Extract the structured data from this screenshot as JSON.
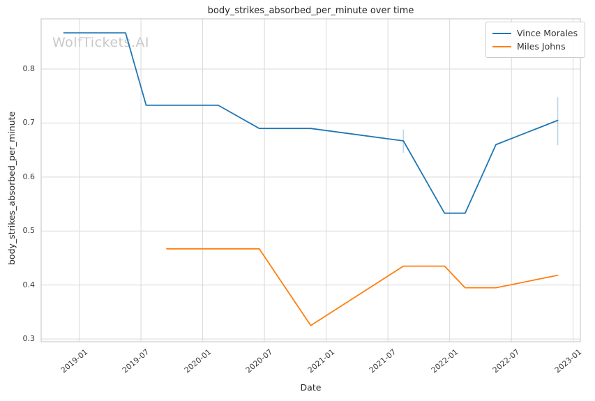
{
  "chart_data": {
    "type": "line",
    "title": "body_strikes_absorbed_per_minute over time",
    "xlabel": "Date",
    "ylabel": "body_strikes_absorbed_per_minute",
    "watermark": "WolfTickets.AI",
    "grid": true,
    "legend_position": "upper right",
    "ylim": [
      0.295,
      0.893
    ],
    "xlim_months_from_2019_01": [
      -3.7,
      48.7
    ],
    "y_ticks": [
      {
        "value": 0.3,
        "label": "0.3"
      },
      {
        "value": 0.4,
        "label": "0.4"
      },
      {
        "value": 0.5,
        "label": "0.5"
      },
      {
        "value": 0.6,
        "label": "0.6"
      },
      {
        "value": 0.7,
        "label": "0.7"
      },
      {
        "value": 0.8,
        "label": "0.8"
      }
    ],
    "x_ticks": [
      {
        "month": "2019-01",
        "label": "2019-01"
      },
      {
        "month": "2019-07",
        "label": "2019-07"
      },
      {
        "month": "2020-01",
        "label": "2020-01"
      },
      {
        "month": "2020-07",
        "label": "2020-07"
      },
      {
        "month": "2021-01",
        "label": "2021-01"
      },
      {
        "month": "2021-07",
        "label": "2021-07"
      },
      {
        "month": "2022-01",
        "label": "2022-01"
      },
      {
        "month": "2022-07",
        "label": "2022-07"
      },
      {
        "month": "2023-01",
        "label": "2023-01"
      }
    ],
    "series": [
      {
        "name": "Vince Morales",
        "color": "#1f77b4",
        "points": [
          {
            "date": "2018-11",
            "value": 0.867
          },
          {
            "date": "2019-05",
            "value": 0.867
          },
          {
            "date": "2019-07",
            "value": 0.733
          },
          {
            "date": "2020-02",
            "value": 0.733
          },
          {
            "date": "2020-06",
            "value": 0.69
          },
          {
            "date": "2020-11",
            "value": 0.69
          },
          {
            "date": "2021-08",
            "value": 0.667
          },
          {
            "date": "2021-12",
            "value": 0.533
          },
          {
            "date": "2022-02",
            "value": 0.533
          },
          {
            "date": "2022-05",
            "value": 0.66
          },
          {
            "date": "2022-11",
            "value": 0.705
          }
        ],
        "error_bars": [
          {
            "date": "2021-08",
            "low": 0.645,
            "high": 0.688
          },
          {
            "date": "2022-11",
            "low": 0.659,
            "high": 0.748
          }
        ]
      },
      {
        "name": "Miles Johns",
        "color": "#ff7f0e",
        "points": [
          {
            "date": "2019-09",
            "value": 0.467
          },
          {
            "date": "2020-06",
            "value": 0.467
          },
          {
            "date": "2020-11",
            "value": 0.325
          },
          {
            "date": "2021-08",
            "value": 0.435
          },
          {
            "date": "2021-12",
            "value": 0.435
          },
          {
            "date": "2022-02",
            "value": 0.395
          },
          {
            "date": "2022-05",
            "value": 0.395
          },
          {
            "date": "2022-11",
            "value": 0.418
          }
        ],
        "error_bars": []
      }
    ],
    "colors": {
      "grid": "#d9d9d9",
      "spine": "#cccccc",
      "error_bar": "rgba(31,119,180,0.3)",
      "background": "#ffffff"
    }
  }
}
